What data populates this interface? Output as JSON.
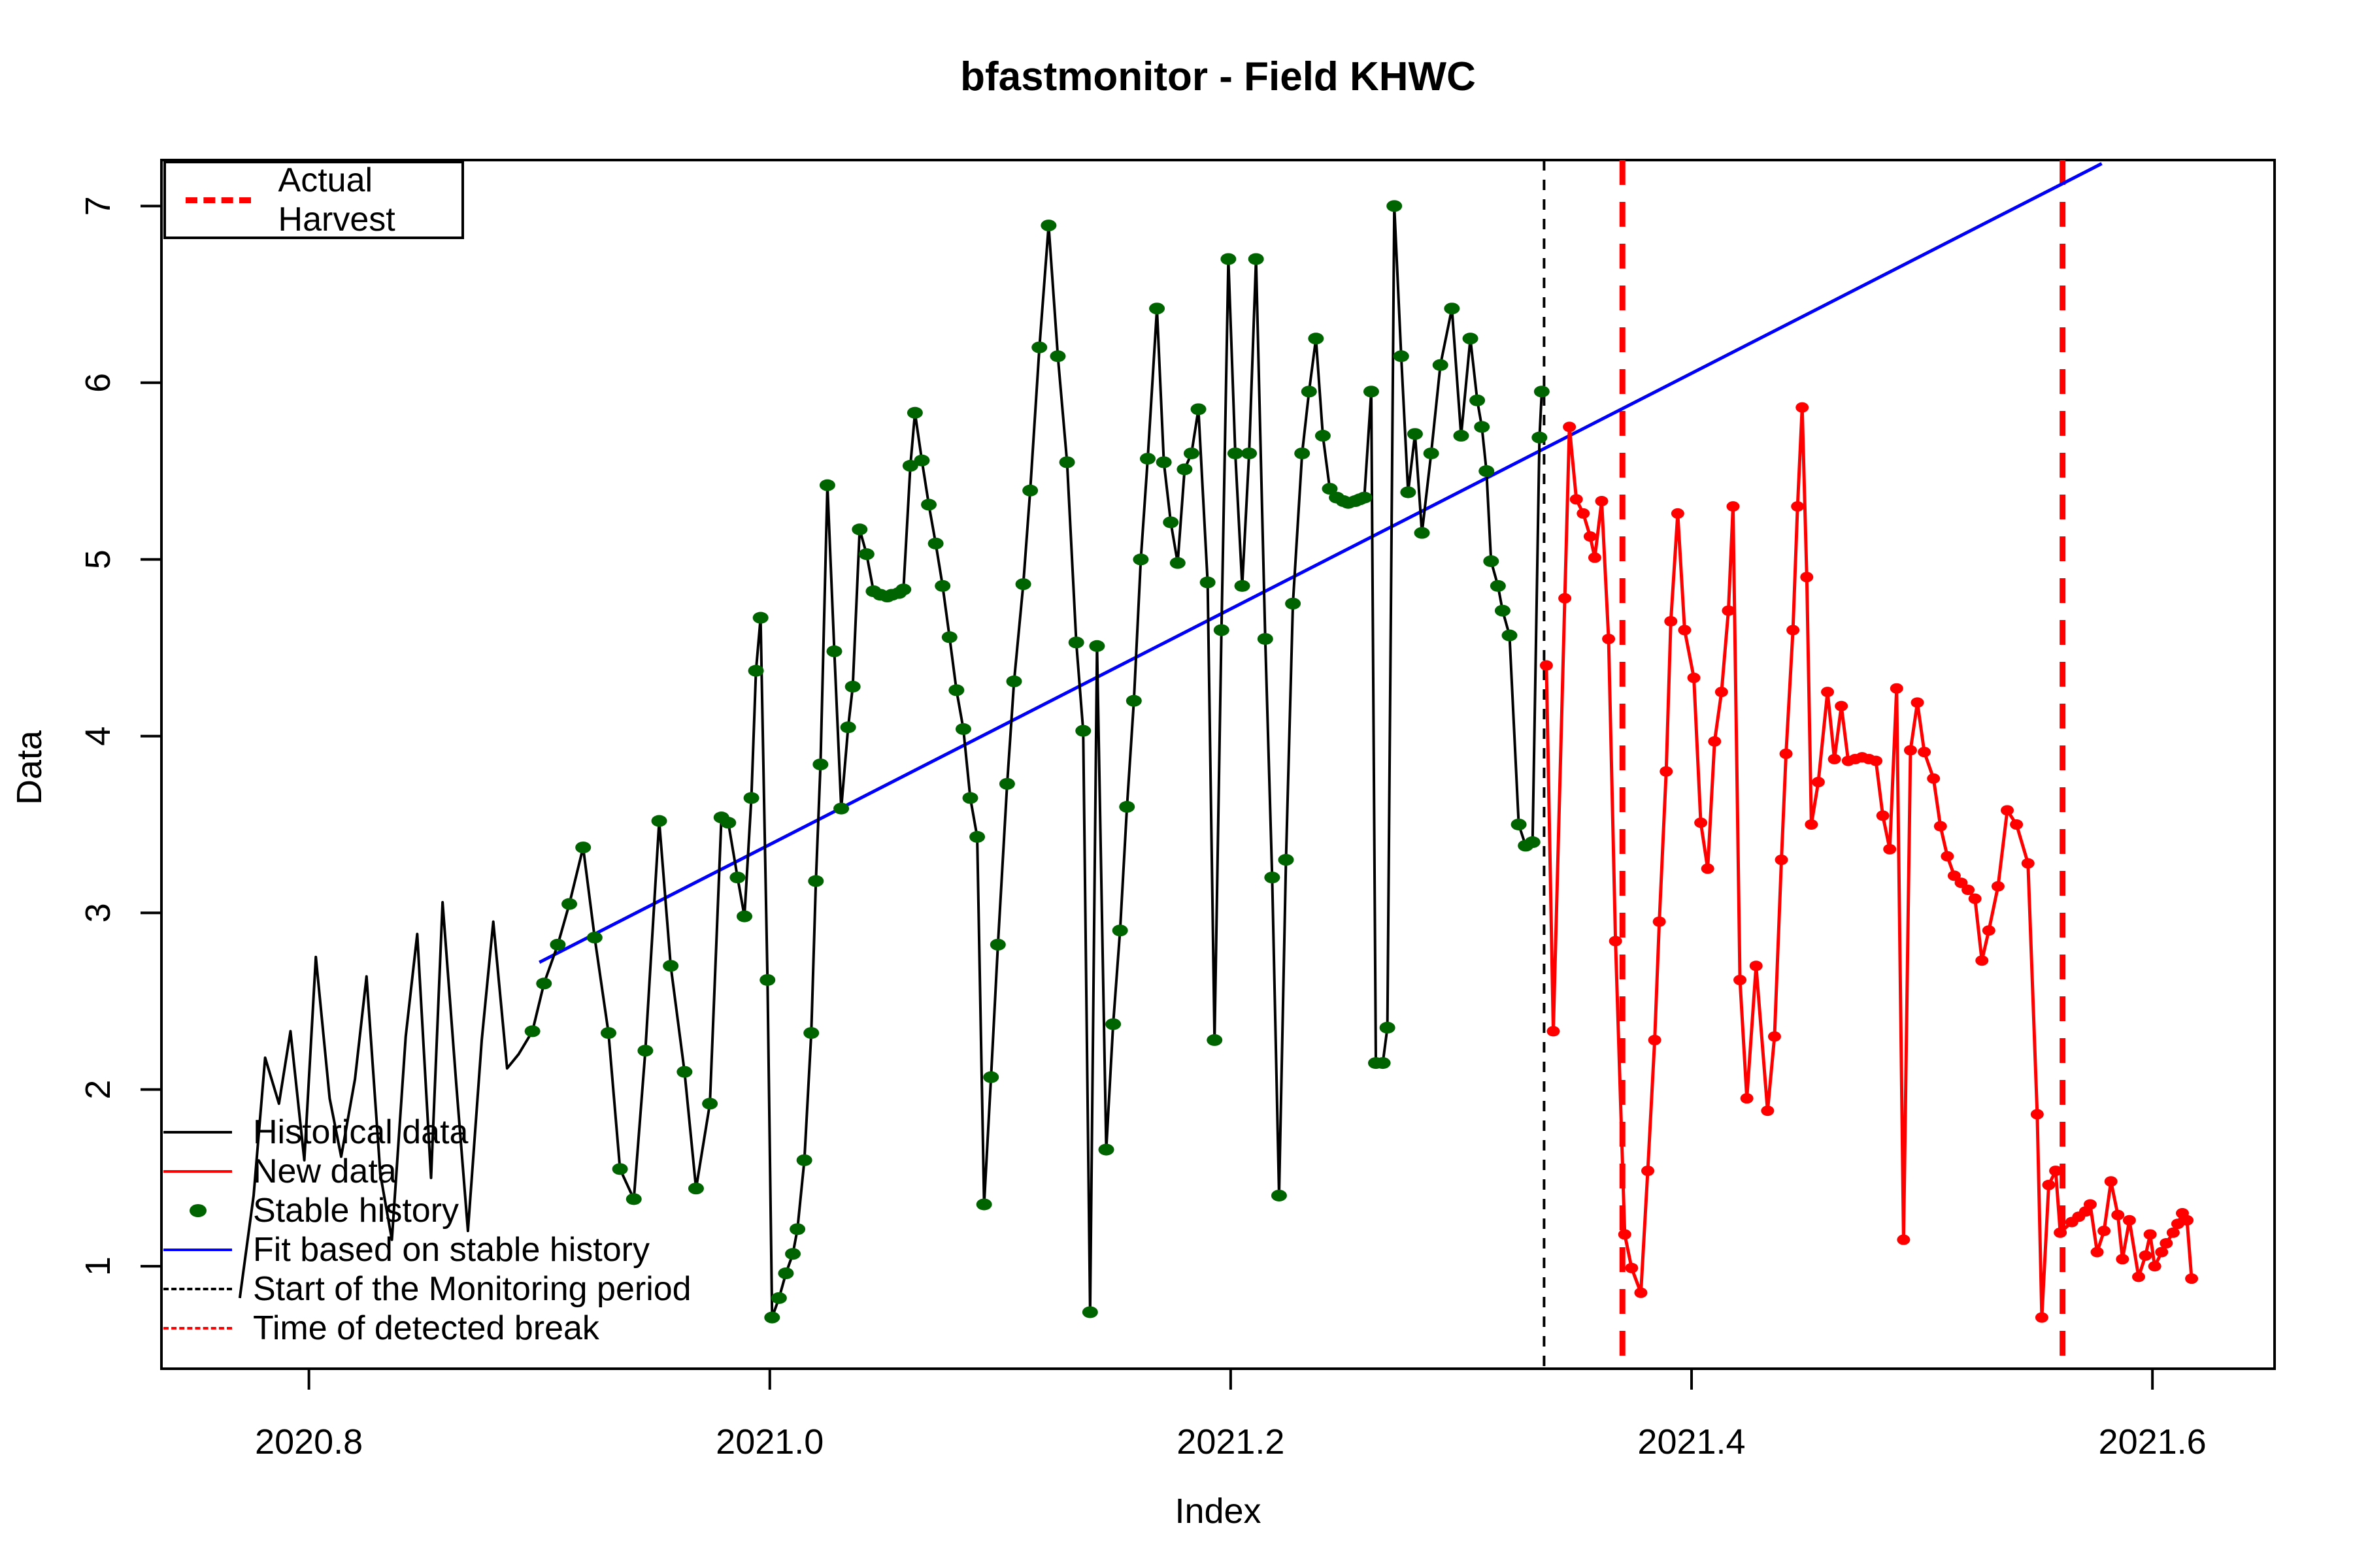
{
  "title": "bfastmonitor - Field KHWC",
  "axes": {
    "xlabel": "Index",
    "ylabel": "Data",
    "xlim": [
      2020.736,
      2021.653
    ],
    "ylim": [
      0.42,
      7.26
    ],
    "xticks": {
      "values": [
        2020.8,
        2021.0,
        2021.2,
        2021.4,
        2021.6
      ],
      "labels": [
        "2020.8",
        "2021.0",
        "2021.2",
        "2021.4",
        "2021.6"
      ]
    },
    "yticks": {
      "values": [
        1,
        2,
        3,
        4,
        5,
        6,
        7
      ],
      "labels": [
        "1",
        "2",
        "3",
        "4",
        "5",
        "6",
        "7"
      ]
    }
  },
  "colors": {
    "historical": "#000000",
    "new_data": "#FF0000",
    "stable_dot": "#006400",
    "fit": "#0000FF",
    "monitor_line": "#000000",
    "break_line": "#FF0000",
    "harvest_line": "#FF0000"
  },
  "legend_top": {
    "items": [
      {
        "label": "Actual Harvest",
        "style": "thick-dashed",
        "color": "#FF0000"
      }
    ]
  },
  "legend_bottom": {
    "items": [
      {
        "label": "Historical data",
        "style": "solid",
        "color": "#000000"
      },
      {
        "label": "New data",
        "style": "solid",
        "color": "#FF0000"
      },
      {
        "label": "Stable history",
        "style": "dot",
        "color": "#006400"
      },
      {
        "label": "Fit based on stable history",
        "style": "solid",
        "color": "#0000FF"
      },
      {
        "label": "Start of the Monitoring period",
        "style": "dashed",
        "color": "#000000"
      },
      {
        "label": "Time of detected break",
        "style": "dashed",
        "color": "#FF0000"
      }
    ]
  },
  "chart_data": {
    "type": "line",
    "title": "bfastmonitor - Field KHWC",
    "xlabel": "Index",
    "ylabel": "Data",
    "xlim": [
      2020.736,
      2021.653
    ],
    "ylim": [
      0.42,
      7.26
    ],
    "grid": false,
    "legend_position": "top-left and bottom-left",
    "vlines": {
      "monitoring_start": {
        "x": 2021.336,
        "label": "Start of the Monitoring period",
        "color": "#000000",
        "style": "dashed",
        "width": 3
      },
      "detected_breaks": [
        {
          "x": 2021.37,
          "label": "Time of detected break",
          "color": "#FF0000",
          "style": "dashed",
          "width": 8
        },
        {
          "x": 2021.561,
          "label": "Time of detected break",
          "color": "#FF0000",
          "style": "dashed",
          "width": 8
        }
      ]
    },
    "fit_line": {
      "name": "Fit based on stable history",
      "color": "#0000FF",
      "points": [
        [
          2020.9,
          2.72
        ],
        [
          2021.578,
          7.24
        ]
      ]
    },
    "stable_history_range": [
      2020.895,
      2021.335
    ],
    "series": [
      {
        "name": "Historical data",
        "color": "#000000",
        "marker": "stable-only",
        "points": [
          [
            2020.77,
            0.82
          ],
          [
            2020.776,
            1.4
          ],
          [
            2020.781,
            2.18
          ],
          [
            2020.787,
            1.92
          ],
          [
            2020.792,
            2.33
          ],
          [
            2020.798,
            1.6
          ],
          [
            2020.803,
            2.75
          ],
          [
            2020.809,
            1.95
          ],
          [
            2020.814,
            1.62
          ],
          [
            2020.82,
            2.06
          ],
          [
            2020.825,
            2.64
          ],
          [
            2020.831,
            1.52
          ],
          [
            2020.836,
            1.15
          ],
          [
            2020.842,
            2.3
          ],
          [
            2020.847,
            2.88
          ],
          [
            2020.853,
            1.5
          ],
          [
            2020.858,
            3.06
          ],
          [
            2020.864,
            2.02
          ],
          [
            2020.869,
            1.2
          ],
          [
            2020.875,
            2.28
          ],
          [
            2020.88,
            2.95
          ],
          [
            2020.886,
            2.12
          ],
          [
            2020.891,
            2.2
          ],
          [
            2020.897,
            2.33
          ],
          [
            2020.902,
            2.6
          ],
          [
            2020.908,
            2.82
          ],
          [
            2020.913,
            3.05
          ],
          [
            2020.919,
            3.37
          ],
          [
            2020.924,
            2.86
          ],
          [
            2020.93,
            2.32
          ],
          [
            2020.935,
            1.55
          ],
          [
            2020.941,
            1.38
          ],
          [
            2020.946,
            2.22
          ],
          [
            2020.952,
            3.52
          ],
          [
            2020.957,
            2.7
          ],
          [
            2020.963,
            2.1
          ],
          [
            2020.968,
            1.44
          ],
          [
            2020.974,
            1.92
          ],
          [
            2020.979,
            3.54
          ],
          [
            2020.982,
            3.51
          ],
          [
            2020.986,
            3.2
          ],
          [
            2020.989,
            2.98
          ],
          [
            2020.992,
            3.65
          ],
          [
            2020.994,
            4.37
          ],
          [
            2020.996,
            4.67
          ],
          [
            2020.999,
            2.62
          ],
          [
            2021.001,
            0.71
          ],
          [
            2021.004,
            0.82
          ],
          [
            2021.007,
            0.96
          ],
          [
            2021.01,
            1.07
          ],
          [
            2021.012,
            1.21
          ],
          [
            2021.015,
            1.6
          ],
          [
            2021.018,
            2.32
          ],
          [
            2021.02,
            3.18
          ],
          [
            2021.022,
            3.84
          ],
          [
            2021.025,
            5.42
          ],
          [
            2021.028,
            4.48
          ],
          [
            2021.031,
            3.59
          ],
          [
            2021.034,
            4.05
          ],
          [
            2021.036,
            4.28
          ],
          [
            2021.039,
            5.17
          ],
          [
            2021.042,
            5.03
          ],
          [
            2021.045,
            4.82
          ],
          [
            2021.048,
            4.8
          ],
          [
            2021.051,
            4.79
          ],
          [
            2021.053,
            4.8
          ],
          [
            2021.056,
            4.81
          ],
          [
            2021.058,
            4.83
          ],
          [
            2021.061,
            5.53
          ],
          [
            2021.063,
            5.83
          ],
          [
            2021.066,
            5.56
          ],
          [
            2021.069,
            5.31
          ],
          [
            2021.072,
            5.09
          ],
          [
            2021.075,
            4.85
          ],
          [
            2021.078,
            4.56
          ],
          [
            2021.081,
            4.26
          ],
          [
            2021.084,
            4.04
          ],
          [
            2021.087,
            3.65
          ],
          [
            2021.09,
            3.43
          ],
          [
            2021.093,
            1.35
          ],
          [
            2021.096,
            2.07
          ],
          [
            2021.099,
            2.82
          ],
          [
            2021.103,
            3.73
          ],
          [
            2021.106,
            4.31
          ],
          [
            2021.11,
            4.86
          ],
          [
            2021.113,
            5.39
          ],
          [
            2021.117,
            6.2
          ],
          [
            2021.121,
            6.89
          ],
          [
            2021.125,
            6.15
          ],
          [
            2021.129,
            5.55
          ],
          [
            2021.133,
            4.53
          ],
          [
            2021.136,
            4.03
          ],
          [
            2021.139,
            0.74
          ],
          [
            2021.142,
            4.51
          ],
          [
            2021.146,
            1.66
          ],
          [
            2021.149,
            2.37
          ],
          [
            2021.152,
            2.9
          ],
          [
            2021.155,
            3.6
          ],
          [
            2021.158,
            4.2
          ],
          [
            2021.161,
            5.0
          ],
          [
            2021.164,
            5.57
          ],
          [
            2021.168,
            6.42
          ],
          [
            2021.171,
            5.55
          ],
          [
            2021.174,
            5.21
          ],
          [
            2021.177,
            4.98
          ],
          [
            2021.18,
            5.51
          ],
          [
            2021.183,
            5.6
          ],
          [
            2021.186,
            5.85
          ],
          [
            2021.19,
            4.87
          ],
          [
            2021.193,
            2.28
          ],
          [
            2021.196,
            4.6
          ],
          [
            2021.199,
            6.7
          ],
          [
            2021.202,
            5.6
          ],
          [
            2021.205,
            4.85
          ],
          [
            2021.208,
            5.6
          ],
          [
            2021.211,
            6.7
          ],
          [
            2021.215,
            4.55
          ],
          [
            2021.218,
            3.2
          ],
          [
            2021.221,
            1.4
          ],
          [
            2021.224,
            3.3
          ],
          [
            2021.227,
            4.75
          ],
          [
            2021.231,
            5.6
          ],
          [
            2021.234,
            5.95
          ],
          [
            2021.237,
            6.25
          ],
          [
            2021.24,
            5.7
          ],
          [
            2021.243,
            5.4
          ],
          [
            2021.246,
            5.35
          ],
          [
            2021.249,
            5.33
          ],
          [
            2021.251,
            5.32
          ],
          [
            2021.254,
            5.33
          ],
          [
            2021.256,
            5.34
          ],
          [
            2021.258,
            5.35
          ],
          [
            2021.261,
            5.95
          ],
          [
            2021.263,
            2.15
          ],
          [
            2021.266,
            2.15
          ],
          [
            2021.268,
            2.35
          ],
          [
            2021.271,
            7.0
          ],
          [
            2021.274,
            6.15
          ],
          [
            2021.277,
            5.38
          ],
          [
            2021.28,
            5.71
          ],
          [
            2021.283,
            5.15
          ],
          [
            2021.287,
            5.6
          ],
          [
            2021.291,
            6.1
          ],
          [
            2021.296,
            6.42
          ],
          [
            2021.3,
            5.7
          ],
          [
            2021.304,
            6.25
          ],
          [
            2021.307,
            5.9
          ],
          [
            2021.309,
            5.75
          ],
          [
            2021.311,
            5.5
          ],
          [
            2021.313,
            4.99
          ],
          [
            2021.316,
            4.85
          ],
          [
            2021.318,
            4.71
          ],
          [
            2021.321,
            4.57
          ],
          [
            2021.325,
            3.5
          ],
          [
            2021.328,
            3.38
          ],
          [
            2021.331,
            3.4
          ],
          [
            2021.334,
            5.69
          ],
          [
            2021.335,
            5.95
          ]
        ]
      },
      {
        "name": "New data",
        "color": "#FF0000",
        "marker": "all",
        "points": [
          [
            2021.337,
            4.4
          ],
          [
            2021.34,
            2.33
          ],
          [
            2021.345,
            4.78
          ],
          [
            2021.347,
            5.75
          ],
          [
            2021.35,
            5.34
          ],
          [
            2021.353,
            5.26
          ],
          [
            2021.356,
            5.13
          ],
          [
            2021.358,
            5.01
          ],
          [
            2021.361,
            5.33
          ],
          [
            2021.364,
            4.55
          ],
          [
            2021.367,
            2.84
          ],
          [
            2021.371,
            1.18
          ],
          [
            2021.374,
            0.99
          ],
          [
            2021.378,
            0.85
          ],
          [
            2021.381,
            1.54
          ],
          [
            2021.384,
            2.28
          ],
          [
            2021.386,
            2.95
          ],
          [
            2021.389,
            3.8
          ],
          [
            2021.391,
            4.65
          ],
          [
            2021.394,
            5.26
          ],
          [
            2021.397,
            4.6
          ],
          [
            2021.401,
            4.33
          ],
          [
            2021.404,
            3.51
          ],
          [
            2021.407,
            3.25
          ],
          [
            2021.41,
            3.97
          ],
          [
            2021.413,
            4.25
          ],
          [
            2021.416,
            4.71
          ],
          [
            2021.418,
            5.3
          ],
          [
            2021.421,
            2.62
          ],
          [
            2021.424,
            1.95
          ],
          [
            2021.428,
            2.7
          ],
          [
            2021.433,
            1.88
          ],
          [
            2021.436,
            2.3
          ],
          [
            2021.439,
            3.3
          ],
          [
            2021.441,
            3.9
          ],
          [
            2021.444,
            4.6
          ],
          [
            2021.446,
            5.3
          ],
          [
            2021.448,
            5.86
          ],
          [
            2021.45,
            4.9
          ],
          [
            2021.452,
            3.5
          ],
          [
            2021.455,
            3.74
          ],
          [
            2021.459,
            4.25
          ],
          [
            2021.462,
            3.87
          ],
          [
            2021.465,
            4.17
          ],
          [
            2021.468,
            3.86
          ],
          [
            2021.471,
            3.87
          ],
          [
            2021.474,
            3.88
          ],
          [
            2021.477,
            3.87
          ],
          [
            2021.48,
            3.86
          ],
          [
            2021.483,
            3.55
          ],
          [
            2021.486,
            3.36
          ],
          [
            2021.489,
            4.27
          ],
          [
            2021.492,
            1.15
          ],
          [
            2021.495,
            3.92
          ],
          [
            2021.498,
            4.19
          ],
          [
            2021.501,
            3.91
          ],
          [
            2021.505,
            3.76
          ],
          [
            2021.508,
            3.49
          ],
          [
            2021.511,
            3.32
          ],
          [
            2021.514,
            3.21
          ],
          [
            2021.517,
            3.17
          ],
          [
            2021.52,
            3.13
          ],
          [
            2021.523,
            3.08
          ],
          [
            2021.526,
            2.73
          ],
          [
            2021.529,
            2.9
          ],
          [
            2021.533,
            3.15
          ],
          [
            2021.537,
            3.58
          ],
          [
            2021.541,
            3.5
          ],
          [
            2021.546,
            3.28
          ],
          [
            2021.55,
            1.86
          ],
          [
            2021.552,
            0.71
          ],
          [
            2021.555,
            1.46
          ],
          [
            2021.558,
            1.54
          ],
          [
            2021.56,
            1.19
          ],
          [
            2021.565,
            1.25
          ],
          [
            2021.568,
            1.28
          ],
          [
            2021.571,
            1.31
          ],
          [
            2021.573,
            1.35
          ],
          [
            2021.576,
            1.08
          ],
          [
            2021.579,
            1.2
          ],
          [
            2021.582,
            1.48
          ],
          [
            2021.585,
            1.29
          ],
          [
            2021.587,
            1.04
          ],
          [
            2021.59,
            1.26
          ],
          [
            2021.594,
            0.94
          ],
          [
            2021.597,
            1.06
          ],
          [
            2021.599,
            1.18
          ],
          [
            2021.601,
            1.0
          ],
          [
            2021.604,
            1.08
          ],
          [
            2021.606,
            1.13
          ],
          [
            2021.609,
            1.19
          ],
          [
            2021.611,
            1.24
          ],
          [
            2021.613,
            1.3
          ],
          [
            2021.615,
            1.26
          ],
          [
            2021.617,
            0.93
          ]
        ]
      }
    ]
  }
}
